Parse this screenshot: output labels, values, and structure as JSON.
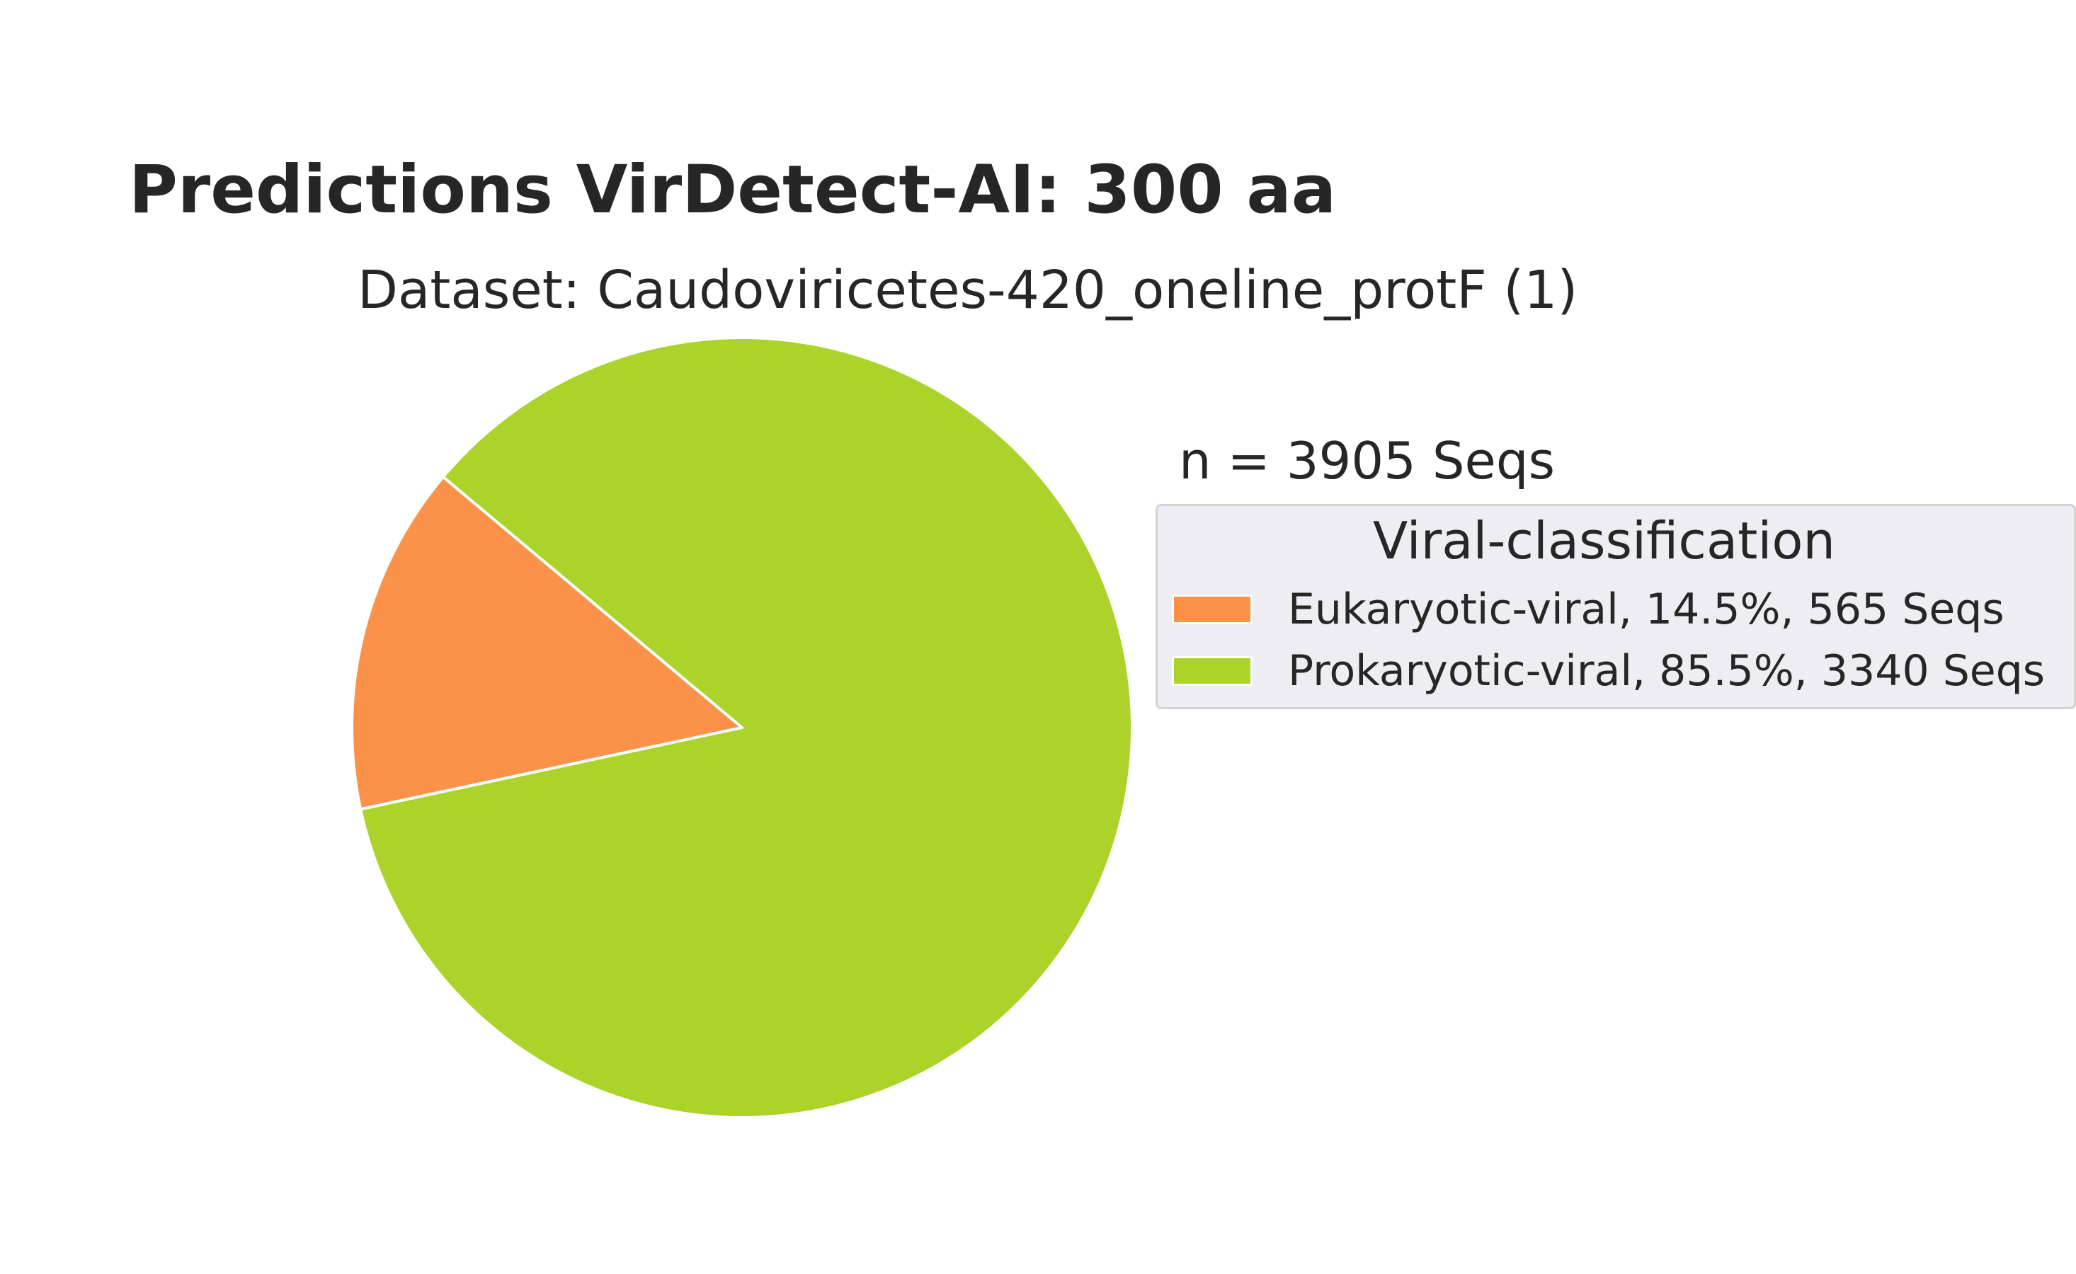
{
  "chart_data": {
    "type": "pie",
    "title": "Predictions VirDetect-AI: 300 aa",
    "subtitle": "Dataset: Caudoviricetes-420_oneline_protF (1)",
    "annotation": "n = 3905 Seqs",
    "legend_title": "Viral-classification",
    "legend_placement": "right",
    "total": 3905,
    "slices": [
      {
        "category": "Eukaryotic-viral",
        "percent": 14.5,
        "count": 565,
        "color": "#fc9149",
        "legend_label": "Eukaryotic-viral, 14.5%, 565 Seqs"
      },
      {
        "category": "Prokaryotic-viral",
        "percent": 85.5,
        "count": 3340,
        "color": "#acd32a",
        "legend_label": "Prokaryotic-viral, 85.5%, 3340 Seqs"
      }
    ],
    "start_angle_deg": 140,
    "direction": "counterclockwise",
    "slice_edge_color": "#ffffff"
  }
}
